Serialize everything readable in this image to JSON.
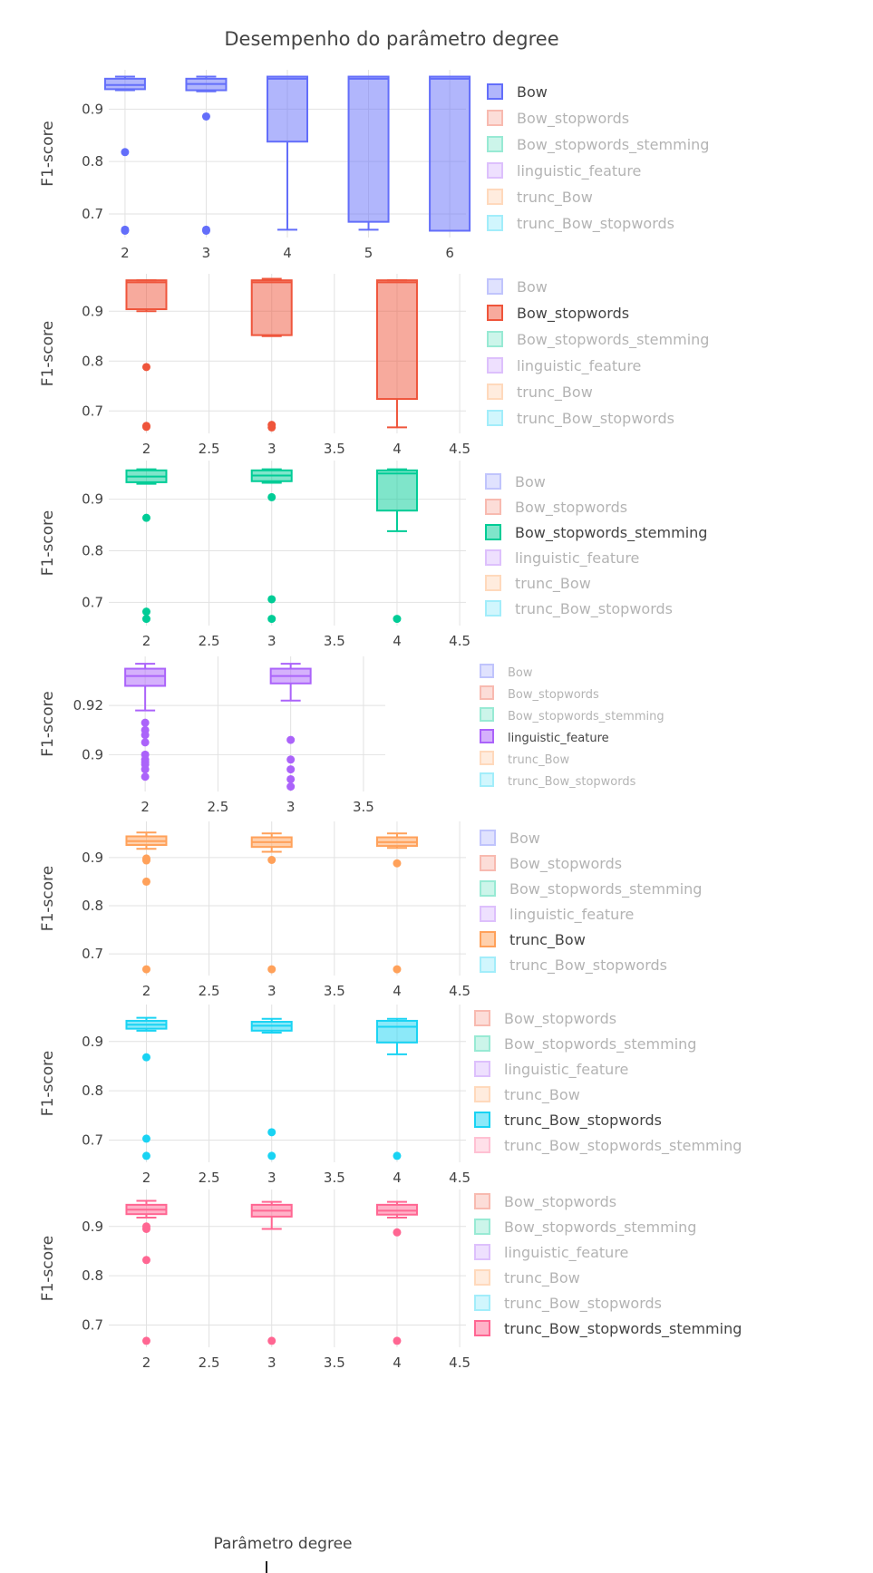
{
  "chart_data": {
    "type": "box",
    "title": "Desempenho do parâmetro degree",
    "xlabel": "Parâmetro degree",
    "ylabel": "F1-score",
    "colors": {
      "Bow": "#636efa",
      "Bow_stopwords": "#ef553b",
      "Bow_stopwords_stemming": "#00cc96",
      "linguistic_feature": "#ab63fa",
      "trunc_Bow": "#ffa15a",
      "trunc_Bow_stopwords": "#19d3f3",
      "trunc_Bow_stopwords_stemming": "#ff6692"
    },
    "subplots": [
      {
        "active": "Bow",
        "legend": [
          "Bow",
          "Bow_stopwords",
          "Bow_stopwords_stemming",
          "linguistic_feature",
          "trunc_Bow",
          "trunc_Bow_stopwords"
        ],
        "xticks": [
          "2",
          "3",
          "4",
          "5",
          "6"
        ],
        "yticks": [
          "0.7",
          "0.8",
          "0.9"
        ],
        "boxes": [
          {
            "x": 2,
            "q1": 0.938,
            "median": 0.946,
            "q3": 0.958,
            "lowerfence": 0.936,
            "upperfence": 0.962,
            "outliers": [
              0.818,
              0.67,
              0.668
            ]
          },
          {
            "x": 3,
            "q1": 0.936,
            "median": 0.948,
            "q3": 0.958,
            "lowerfence": 0.934,
            "upperfence": 0.962,
            "outliers": [
              0.886,
              0.67,
              0.668
            ]
          },
          {
            "x": 4,
            "q1": 0.838,
            "median": 0.958,
            "q3": 0.962,
            "lowerfence": 0.67,
            "upperfence": 0.962,
            "outliers": []
          },
          {
            "x": 5,
            "q1": 0.685,
            "median": 0.958,
            "q3": 0.962,
            "lowerfence": 0.67,
            "upperfence": 0.962,
            "outliers": []
          },
          {
            "x": 6,
            "q1": 0.668,
            "median": 0.958,
            "q3": 0.962,
            "lowerfence": 0.668,
            "upperfence": 0.962,
            "outliers": []
          }
        ]
      },
      {
        "active": "Bow_stopwords",
        "legend": [
          "Bow",
          "Bow_stopwords",
          "Bow_stopwords_stemming",
          "linguistic_feature",
          "trunc_Bow",
          "trunc_Bow_stopwords"
        ],
        "xticks": [
          "2",
          "2.5",
          "3",
          "3.5",
          "4",
          "4.5"
        ],
        "yticks": [
          "0.7",
          "0.8",
          "0.9"
        ],
        "boxes": [
          {
            "x": 2,
            "q1": 0.904,
            "median": 0.958,
            "q3": 0.962,
            "lowerfence": 0.9,
            "upperfence": 0.962,
            "outliers": [
              0.788,
              0.67,
              0.668
            ]
          },
          {
            "x": 3,
            "q1": 0.852,
            "median": 0.958,
            "q3": 0.962,
            "lowerfence": 0.85,
            "upperfence": 0.965,
            "outliers": [
              0.672,
              0.667
            ]
          },
          {
            "x": 4,
            "q1": 0.724,
            "median": 0.958,
            "q3": 0.962,
            "lowerfence": 0.667,
            "upperfence": 0.962,
            "outliers": []
          }
        ]
      },
      {
        "active": "Bow_stopwords_stemming",
        "legend": [
          "Bow",
          "Bow_stopwords",
          "Bow_stopwords_stemming",
          "linguistic_feature",
          "trunc_Bow",
          "trunc_Bow_stopwords"
        ],
        "xticks": [
          "2",
          "2.5",
          "3",
          "3.5",
          "4",
          "4.5"
        ],
        "yticks": [
          "0.7",
          "0.8",
          "0.9"
        ],
        "boxes": [
          {
            "x": 2,
            "q1": 0.933,
            "median": 0.944,
            "q3": 0.956,
            "lowerfence": 0.93,
            "upperfence": 0.958,
            "outliers": [
              0.864,
              0.682,
              0.668
            ]
          },
          {
            "x": 3,
            "q1": 0.935,
            "median": 0.946,
            "q3": 0.956,
            "lowerfence": 0.932,
            "upperfence": 0.958,
            "outliers": [
              0.904,
              0.706,
              0.668
            ]
          },
          {
            "x": 4,
            "q1": 0.878,
            "median": 0.95,
            "q3": 0.956,
            "lowerfence": 0.838,
            "upperfence": 0.958,
            "outliers": [
              0.668
            ]
          }
        ]
      },
      {
        "active": "linguistic_feature",
        "legend": [
          "Bow",
          "Bow_stopwords",
          "Bow_stopwords_stemming",
          "linguistic_feature",
          "trunc_Bow",
          "trunc_Bow_stopwords"
        ],
        "xticks": [
          "2",
          "2.5",
          "3",
          "3.5"
        ],
        "yticks": [
          "0.9",
          "0.92"
        ],
        "boxes": [
          {
            "x": 2,
            "q1": 0.928,
            "median": 0.932,
            "q3": 0.935,
            "lowerfence": 0.918,
            "upperfence": 0.937,
            "outliers": [
              0.913,
              0.91,
              0.908,
              0.905,
              0.9,
              0.898,
              0.897,
              0.896,
              0.894,
              0.891
            ]
          },
          {
            "x": 3,
            "q1": 0.929,
            "median": 0.932,
            "q3": 0.935,
            "lowerfence": 0.922,
            "upperfence": 0.937,
            "outliers": [
              0.906,
              0.898,
              0.894,
              0.89,
              0.887
            ]
          }
        ]
      },
      {
        "active": "trunc_Bow",
        "legend": [
          "Bow",
          "Bow_stopwords",
          "Bow_stopwords_stemming",
          "linguistic_feature",
          "trunc_Bow",
          "trunc_Bow_stopwords"
        ],
        "xticks": [
          "2",
          "2.5",
          "3",
          "3.5",
          "4",
          "4.5"
        ],
        "yticks": [
          "0.7",
          "0.8",
          "0.9"
        ],
        "boxes": [
          {
            "x": 2,
            "q1": 0.926,
            "median": 0.934,
            "q3": 0.944,
            "lowerfence": 0.918,
            "upperfence": 0.952,
            "outliers": [
              0.898,
              0.894,
              0.85,
              0.668
            ]
          },
          {
            "x": 3,
            "q1": 0.922,
            "median": 0.932,
            "q3": 0.942,
            "lowerfence": 0.912,
            "upperfence": 0.95,
            "outliers": [
              0.895,
              0.668
            ]
          },
          {
            "x": 4,
            "q1": 0.924,
            "median": 0.932,
            "q3": 0.942,
            "lowerfence": 0.92,
            "upperfence": 0.95,
            "outliers": [
              0.888,
              0.668
            ]
          }
        ]
      },
      {
        "active": "trunc_Bow_stopwords",
        "legend": [
          "Bow_stopwords",
          "Bow_stopwords_stemming",
          "linguistic_feature",
          "trunc_Bow",
          "trunc_Bow_stopwords",
          "trunc_Bow_stopwords_stemming"
        ],
        "xticks": [
          "2",
          "2.5",
          "3",
          "3.5",
          "4",
          "4.5"
        ],
        "yticks": [
          "0.7",
          "0.8",
          "0.9"
        ],
        "boxes": [
          {
            "x": 2,
            "q1": 0.926,
            "median": 0.934,
            "q3": 0.942,
            "lowerfence": 0.922,
            "upperfence": 0.948,
            "outliers": [
              0.868,
              0.703,
              0.668
            ]
          },
          {
            "x": 3,
            "q1": 0.922,
            "median": 0.932,
            "q3": 0.94,
            "lowerfence": 0.918,
            "upperfence": 0.946,
            "outliers": [
              0.716,
              0.668
            ]
          },
          {
            "x": 4,
            "q1": 0.898,
            "median": 0.93,
            "q3": 0.942,
            "lowerfence": 0.874,
            "upperfence": 0.946,
            "outliers": [
              0.668
            ]
          }
        ]
      },
      {
        "active": "trunc_Bow_stopwords_stemming",
        "legend": [
          "Bow_stopwords",
          "Bow_stopwords_stemming",
          "linguistic_feature",
          "trunc_Bow",
          "trunc_Bow_stopwords",
          "trunc_Bow_stopwords_stemming"
        ],
        "xticks": [
          "2",
          "2.5",
          "3",
          "3.5",
          "4",
          "4.5"
        ],
        "yticks": [
          "0.7",
          "0.8",
          "0.9"
        ],
        "boxes": [
          {
            "x": 2,
            "q1": 0.925,
            "median": 0.934,
            "q3": 0.944,
            "lowerfence": 0.918,
            "upperfence": 0.952,
            "outliers": [
              0.9,
              0.895,
              0.832,
              0.668
            ]
          },
          {
            "x": 3,
            "q1": 0.92,
            "median": 0.932,
            "q3": 0.944,
            "lowerfence": 0.895,
            "upperfence": 0.95,
            "outliers": [
              0.668
            ]
          },
          {
            "x": 4,
            "q1": 0.924,
            "median": 0.932,
            "q3": 0.944,
            "lowerfence": 0.918,
            "upperfence": 0.95,
            "outliers": [
              0.888,
              0.668
            ]
          }
        ]
      }
    ]
  }
}
